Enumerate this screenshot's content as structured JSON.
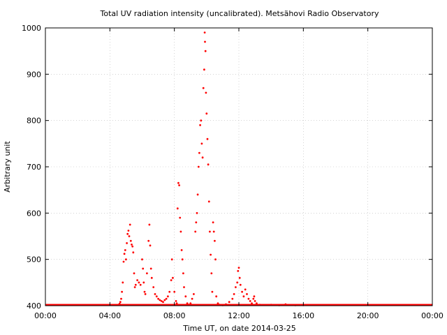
{
  "chart_data": {
    "type": "scatter",
    "title": "Total UV radiation intensity (uncalibrated). Metsähovi Radio Observatory",
    "xlabel": "Time UT, on date 2014-03-25",
    "ylabel": "Arbitrary unit",
    "xlim": [
      0,
      24
    ],
    "ylim": [
      400,
      1000
    ],
    "x_tick_values": [
      0,
      4,
      8,
      12,
      16,
      20,
      24
    ],
    "x_tick_labels": [
      "00:00",
      "04:00",
      "08:00",
      "12:00",
      "16:00",
      "20:00",
      "00:00"
    ],
    "y_tick_values": [
      400,
      500,
      600,
      700,
      800,
      900,
      1000
    ],
    "y_tick_labels": [
      "400",
      "500",
      "600",
      "700",
      "800",
      "900",
      "1000"
    ],
    "grid": true,
    "marker_color": "#ff0000",
    "points": [
      [
        4.55,
        402
      ],
      [
        4.6,
        404
      ],
      [
        4.65,
        408
      ],
      [
        4.7,
        415
      ],
      [
        4.75,
        430
      ],
      [
        4.8,
        450
      ],
      [
        4.85,
        495
      ],
      [
        4.9,
        512
      ],
      [
        4.95,
        520
      ],
      [
        5.0,
        500
      ],
      [
        5.05,
        535
      ],
      [
        5.1,
        555
      ],
      [
        5.15,
        562
      ],
      [
        5.2,
        550
      ],
      [
        5.25,
        575
      ],
      [
        5.3,
        540
      ],
      [
        5.35,
        532
      ],
      [
        5.4,
        528
      ],
      [
        5.45,
        515
      ],
      [
        5.5,
        470
      ],
      [
        5.55,
        440
      ],
      [
        5.6,
        445
      ],
      [
        5.7,
        455
      ],
      [
        5.8,
        450
      ],
      [
        5.9,
        445
      ],
      [
        6.0,
        500
      ],
      [
        6.05,
        480
      ],
      [
        6.1,
        450
      ],
      [
        6.15,
        430
      ],
      [
        6.2,
        425
      ],
      [
        6.3,
        470
      ],
      [
        6.4,
        540
      ],
      [
        6.45,
        575
      ],
      [
        6.5,
        530
      ],
      [
        6.55,
        480
      ],
      [
        6.6,
        460
      ],
      [
        6.7,
        440
      ],
      [
        6.8,
        425
      ],
      [
        6.9,
        420
      ],
      [
        7.0,
        415
      ],
      [
        7.1,
        412
      ],
      [
        7.2,
        410
      ],
      [
        7.3,
        408
      ],
      [
        7.4,
        412
      ],
      [
        7.5,
        415
      ],
      [
        7.6,
        420
      ],
      [
        7.7,
        430
      ],
      [
        7.8,
        455
      ],
      [
        7.85,
        500
      ],
      [
        7.9,
        460
      ],
      [
        8.0,
        430
      ],
      [
        8.1,
        410
      ],
      [
        8.15,
        405
      ],
      [
        8.2,
        610
      ],
      [
        8.25,
        665
      ],
      [
        8.3,
        660
      ],
      [
        8.35,
        590
      ],
      [
        8.4,
        560
      ],
      [
        8.45,
        520
      ],
      [
        8.5,
        500
      ],
      [
        8.55,
        470
      ],
      [
        8.6,
        440
      ],
      [
        8.7,
        420
      ],
      [
        8.8,
        405
      ],
      [
        8.9,
        402
      ],
      [
        9.0,
        405
      ],
      [
        9.1,
        415
      ],
      [
        9.2,
        425
      ],
      [
        9.3,
        560
      ],
      [
        9.35,
        580
      ],
      [
        9.4,
        600
      ],
      [
        9.45,
        640
      ],
      [
        9.5,
        700
      ],
      [
        9.55,
        730
      ],
      [
        9.6,
        790
      ],
      [
        9.65,
        800
      ],
      [
        9.7,
        750
      ],
      [
        9.75,
        720
      ],
      [
        9.8,
        870
      ],
      [
        9.85,
        910
      ],
      [
        9.88,
        990
      ],
      [
        9.9,
        970
      ],
      [
        9.93,
        950
      ],
      [
        9.96,
        860
      ],
      [
        10.0,
        815
      ],
      [
        10.05,
        760
      ],
      [
        10.1,
        705
      ],
      [
        10.15,
        625
      ],
      [
        10.2,
        560
      ],
      [
        10.25,
        510
      ],
      [
        10.3,
        470
      ],
      [
        10.35,
        430
      ],
      [
        10.4,
        580
      ],
      [
        10.45,
        560
      ],
      [
        10.5,
        540
      ],
      [
        10.55,
        500
      ],
      [
        10.6,
        420
      ],
      [
        10.7,
        405
      ],
      [
        10.8,
        402
      ],
      [
        11.0,
        401
      ],
      [
        11.2,
        403
      ],
      [
        11.4,
        408
      ],
      [
        11.6,
        415
      ],
      [
        11.7,
        425
      ],
      [
        11.8,
        440
      ],
      [
        11.9,
        450
      ],
      [
        11.95,
        475
      ],
      [
        12.0,
        482
      ],
      [
        12.05,
        460
      ],
      [
        12.1,
        445
      ],
      [
        12.2,
        430
      ],
      [
        12.3,
        420
      ],
      [
        12.4,
        435
      ],
      [
        12.5,
        425
      ],
      [
        12.6,
        415
      ],
      [
        12.7,
        410
      ],
      [
        12.8,
        405
      ],
      [
        12.9,
        415
      ],
      [
        12.95,
        420
      ],
      [
        13.0,
        410
      ],
      [
        13.1,
        405
      ],
      [
        13.3,
        402
      ],
      [
        14.0,
        402
      ],
      [
        14.5,
        401
      ],
      [
        14.9,
        403
      ],
      [
        15.5,
        401
      ],
      [
        16.0,
        401
      ]
    ]
  }
}
